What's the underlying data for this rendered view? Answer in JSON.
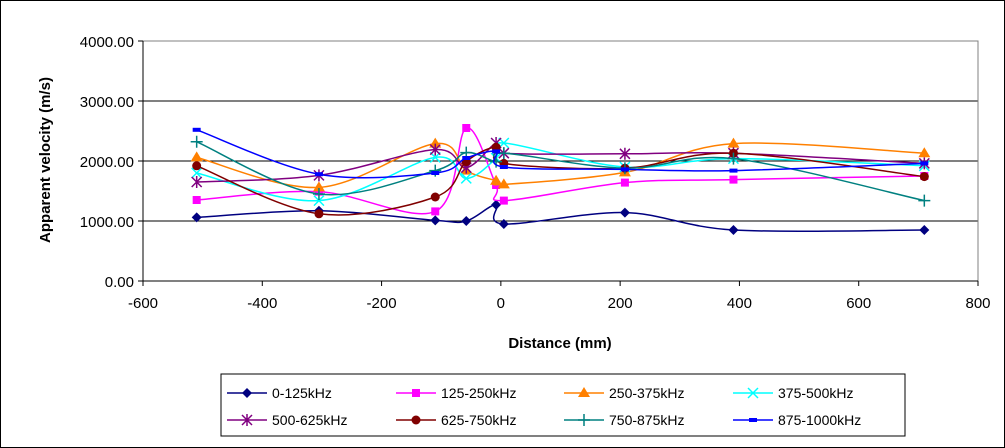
{
  "chart_data": {
    "type": "line",
    "title": "",
    "xlabel": "Distance (mm)",
    "ylabel": "Apparent velocity (m/s)",
    "xlim": [
      -600,
      800
    ],
    "ylim": [
      0,
      4000
    ],
    "xticks": [
      "-600",
      "-400",
      "-200",
      "0",
      "200",
      "400",
      "600",
      "800"
    ],
    "yticks": [
      "0.00",
      "1000.00",
      "2000.00",
      "3000.00",
      "4000.00"
    ],
    "grid": "horizontal",
    "legend_position": "bottom",
    "series": [
      {
        "name": "0-125kHz",
        "color": "#000080",
        "marker": "diamond",
        "x": [
          -510,
          -305,
          -110,
          -58,
          -8,
          5,
          208,
          390,
          710
        ],
        "y": [
          1060,
          1170,
          1010,
          1000,
          1270,
          950,
          1140,
          850,
          850
        ]
      },
      {
        "name": "125-250kHz",
        "color": "#ff00ff",
        "marker": "square",
        "x": [
          -510,
          -305,
          -110,
          -58,
          -8,
          5,
          208,
          390,
          710
        ],
        "y": [
          1350,
          1490,
          1160,
          2550,
          1600,
          1340,
          1640,
          1690,
          1750
        ]
      },
      {
        "name": "250-375kHz",
        "color": "#ff8000",
        "marker": "triangle",
        "x": [
          -510,
          -305,
          -110,
          -58,
          -8,
          5,
          208,
          390,
          710
        ],
        "y": [
          2060,
          1560,
          2290,
          1840,
          1670,
          1610,
          1810,
          2290,
          2130
        ]
      },
      {
        "name": "375-500kHz",
        "color": "#00ffff",
        "marker": "x",
        "x": [
          -510,
          -305,
          -110,
          -58,
          -8,
          5,
          208,
          390,
          710
        ],
        "y": [
          1800,
          1340,
          2060,
          1710,
          2050,
          2300,
          1900,
          2040,
          1920
        ]
      },
      {
        "name": "500-625kHz",
        "color": "#800080",
        "marker": "star",
        "x": [
          -510,
          -305,
          -110,
          -58,
          -8,
          5,
          208,
          390,
          710
        ],
        "y": [
          1650,
          1760,
          2190,
          1890,
          2300,
          2130,
          2120,
          2130,
          1960
        ]
      },
      {
        "name": "625-750kHz",
        "color": "#800000",
        "marker": "circle",
        "x": [
          -510,
          -305,
          -110,
          -58,
          -8,
          5,
          208,
          390,
          710
        ],
        "y": [
          1920,
          1120,
          1400,
          1990,
          2230,
          1960,
          1880,
          2130,
          1740
        ]
      },
      {
        "name": "750-875kHz",
        "color": "#008080",
        "marker": "plus",
        "x": [
          -510,
          -305,
          -110,
          -58,
          -8,
          5,
          208,
          390,
          710
        ],
        "y": [
          2320,
          1450,
          1840,
          2140,
          1990,
          2130,
          1880,
          2040,
          1340
        ]
      },
      {
        "name": "875-1000kHz",
        "color": "#0000ff",
        "marker": "dash",
        "x": [
          -510,
          -305,
          -110,
          -58,
          -8,
          5,
          208,
          390,
          710
        ],
        "y": [
          2520,
          1780,
          1800,
          2050,
          2160,
          1900,
          1860,
          1840,
          1960
        ]
      }
    ]
  }
}
